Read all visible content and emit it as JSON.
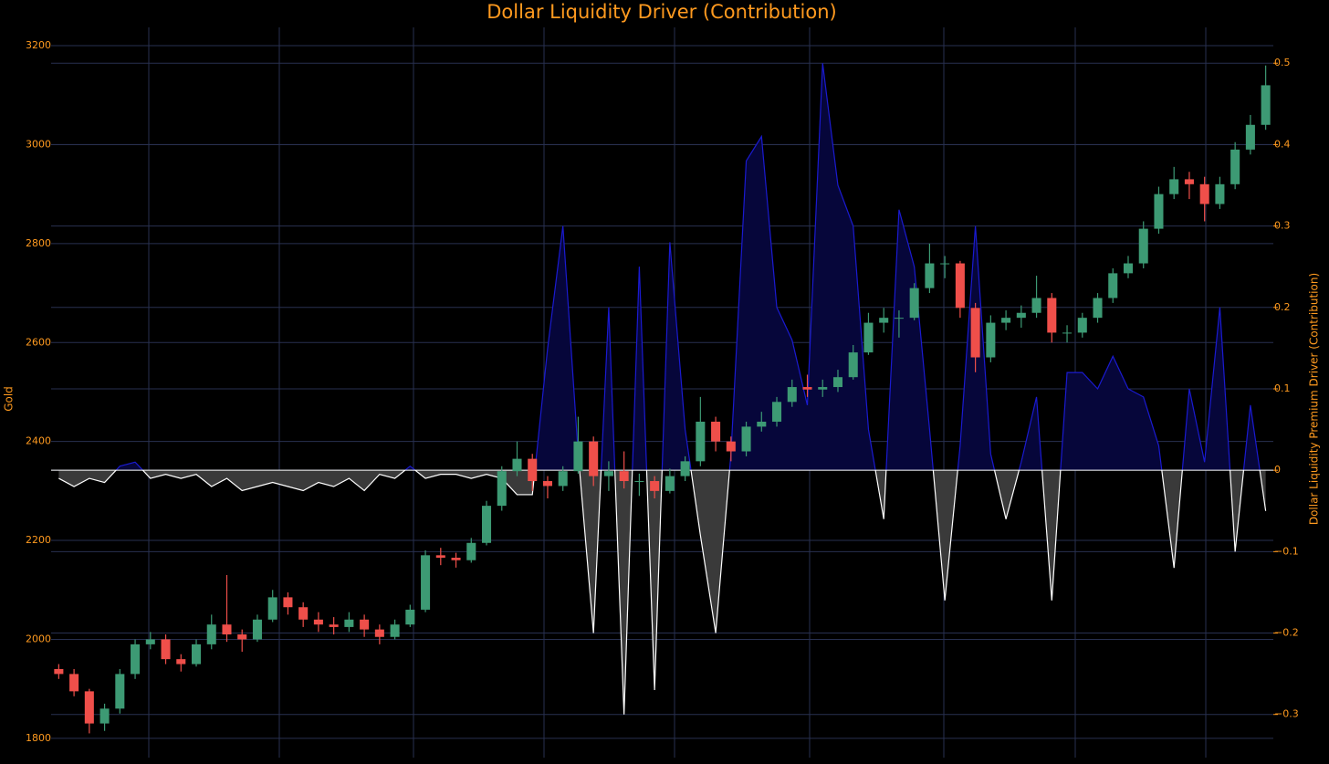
{
  "chart_data": {
    "type": "candlestick",
    "title": "Dollar Liquidity Driver (Contribution)",
    "y_label": "Gold",
    "y2_label": "Dollar Liquidity Premium Driver (Contribution)",
    "categories": [
      null,
      null,
      null,
      null,
      null,
      null,
      null,
      null,
      null,
      null,
      null,
      null,
      null,
      null,
      null,
      null,
      null,
      null,
      null,
      null,
      null,
      null,
      null,
      null,
      null,
      null,
      null,
      null,
      null,
      null,
      null,
      null,
      null,
      null,
      null,
      null,
      null,
      null,
      null,
      null,
      null,
      null,
      null,
      null,
      null,
      null,
      null,
      null,
      null,
      null,
      null,
      null,
      null,
      null,
      null,
      null,
      null,
      null,
      null,
      null,
      null,
      null,
      null,
      null,
      null,
      null,
      null,
      null,
      null,
      null,
      null,
      null,
      null,
      null,
      null,
      null,
      null,
      null,
      null,
      null
    ],
    "ylim": [
      1761,
      3237
    ],
    "yticks": [
      1800,
      2000,
      2200,
      2400,
      2600,
      2800,
      3000,
      3200
    ],
    "y2lim": [
      -0.353,
      0.544
    ],
    "y2ticks": [
      {
        "value": -0.3,
        "label": "−0.3"
      },
      {
        "value": -0.2,
        "label": "−0.2"
      },
      {
        "value": -0.1,
        "label": "−0.1"
      },
      0,
      0.1,
      0.2,
      0.3,
      0.4,
      0.5
    ],
    "grid": true,
    "series": [
      {
        "type": "candlestick",
        "increasing_color": "#3d9a74",
        "decreasing_color": "#ef4f4a",
        "open": [
          1940,
          1930,
          1895,
          1830,
          1860,
          1930,
          1990,
          2000,
          1960,
          1950,
          1990,
          2030,
          2010,
          2000,
          2040,
          2085,
          2065,
          2040,
          2030,
          2025,
          2040,
          2020,
          2005,
          2030,
          2060,
          2170,
          2165,
          2160,
          2195,
          2270,
          2340,
          2365,
          2320,
          2310,
          2340,
          2400,
          2330,
          2340,
          2320,
          2320,
          2300,
          2330,
          2360,
          2440,
          2400,
          2380,
          2430,
          2440,
          2480,
          2510,
          2505,
          2510,
          2530,
          2580,
          2640,
          2650,
          2650,
          2710,
          2760,
          2760,
          2670,
          2570,
          2640,
          2650,
          2660,
          2690,
          2620,
          2620,
          2650,
          2690,
          2740,
          2760,
          2830,
          2900,
          2930,
          2920,
          2880,
          2920,
          2990,
          3040
        ],
        "high": [
          1950,
          1940,
          1900,
          1870,
          1940,
          2000,
          2015,
          2010,
          1970,
          2000,
          2050,
          2130,
          2020,
          2050,
          2100,
          2095,
          2075,
          2055,
          2045,
          2055,
          2050,
          2030,
          2040,
          2070,
          2180,
          2185,
          2175,
          2205,
          2280,
          2350,
          2400,
          2375,
          2330,
          2350,
          2450,
          2410,
          2360,
          2380,
          2335,
          2330,
          2345,
          2370,
          2490,
          2450,
          2410,
          2440,
          2460,
          2490,
          2525,
          2535,
          2525,
          2545,
          2595,
          2660,
          2670,
          2665,
          2720,
          2800,
          2775,
          2765,
          2680,
          2655,
          2665,
          2675,
          2735,
          2700,
          2635,
          2660,
          2700,
          2750,
          2775,
          2845,
          2915,
          2955,
          2945,
          2935,
          2935,
          3005,
          3060,
          3160
        ],
        "low": [
          1920,
          1885,
          1810,
          1815,
          1850,
          1920,
          1980,
          1950,
          1935,
          1945,
          1980,
          1995,
          1975,
          1995,
          2035,
          2050,
          2025,
          2015,
          2010,
          2015,
          2005,
          1990,
          2000,
          2025,
          2055,
          2150,
          2145,
          2155,
          2190,
          2260,
          2330,
          2300,
          2285,
          2300,
          2335,
          2310,
          2300,
          2305,
          2290,
          2285,
          2295,
          2320,
          2350,
          2380,
          2360,
          2370,
          2420,
          2430,
          2470,
          2490,
          2490,
          2500,
          2525,
          2575,
          2620,
          2610,
          2645,
          2700,
          2730,
          2650,
          2540,
          2560,
          2625,
          2630,
          2650,
          2600,
          2600,
          2610,
          2640,
          2680,
          2730,
          2750,
          2820,
          2890,
          2890,
          2845,
          2870,
          2910,
          2980,
          3030
        ],
        "close": [
          1930,
          1895,
          1830,
          1860,
          1930,
          1990,
          2000,
          1960,
          1950,
          1990,
          2030,
          2010,
          2000,
          2040,
          2085,
          2065,
          2040,
          2030,
          2025,
          2040,
          2020,
          2005,
          2030,
          2060,
          2170,
          2165,
          2160,
          2195,
          2270,
          2340,
          2365,
          2320,
          2310,
          2340,
          2400,
          2330,
          2340,
          2320,
          2320,
          2300,
          2330,
          2360,
          2440,
          2400,
          2380,
          2430,
          2440,
          2480,
          2510,
          2505,
          2510,
          2530,
          2580,
          2640,
          2650,
          2650,
          2710,
          2760,
          2760,
          2670,
          2570,
          2640,
          2650,
          2660,
          2690,
          2620,
          2620,
          2650,
          2690,
          2740,
          2760,
          2830,
          2900,
          2930,
          2920,
          2880,
          2920,
          2990,
          3040,
          3120
        ]
      },
      {
        "type": "area",
        "axis": "y2",
        "color": "#1a1ad0",
        "fill": "#06063a",
        "negative_color": "#ffffff",
        "negative_fill": "#3a3a3a",
        "values": [
          -0.01,
          -0.02,
          -0.01,
          -0.015,
          0.005,
          0.01,
          -0.01,
          -0.005,
          -0.01,
          -0.005,
          -0.02,
          -0.01,
          -0.025,
          -0.02,
          -0.015,
          -0.02,
          -0.025,
          -0.015,
          -0.02,
          -0.01,
          -0.025,
          -0.005,
          -0.01,
          0.005,
          -0.01,
          -0.005,
          -0.005,
          -0.01,
          -0.005,
          -0.01,
          -0.03,
          -0.03,
          0.15,
          0.3,
          0.02,
          -0.2,
          0.2,
          -0.3,
          0.25,
          -0.27,
          0.28,
          0.05,
          -0.08,
          -0.2,
          0.02,
          0.38,
          0.41,
          0.2,
          0.16,
          0.08,
          0.5,
          0.35,
          0.3,
          0.05,
          -0.06,
          0.32,
          0.25,
          0.05,
          -0.16,
          0.03,
          0.3,
          0.02,
          -0.06,
          0.01,
          0.09,
          -0.16,
          0.12,
          0.12,
          0.1,
          0.14,
          0.1,
          0.09,
          0.03,
          -0.12,
          0.1,
          0.01,
          0.2,
          -0.1,
          0.08,
          -0.05
        ]
      }
    ]
  }
}
